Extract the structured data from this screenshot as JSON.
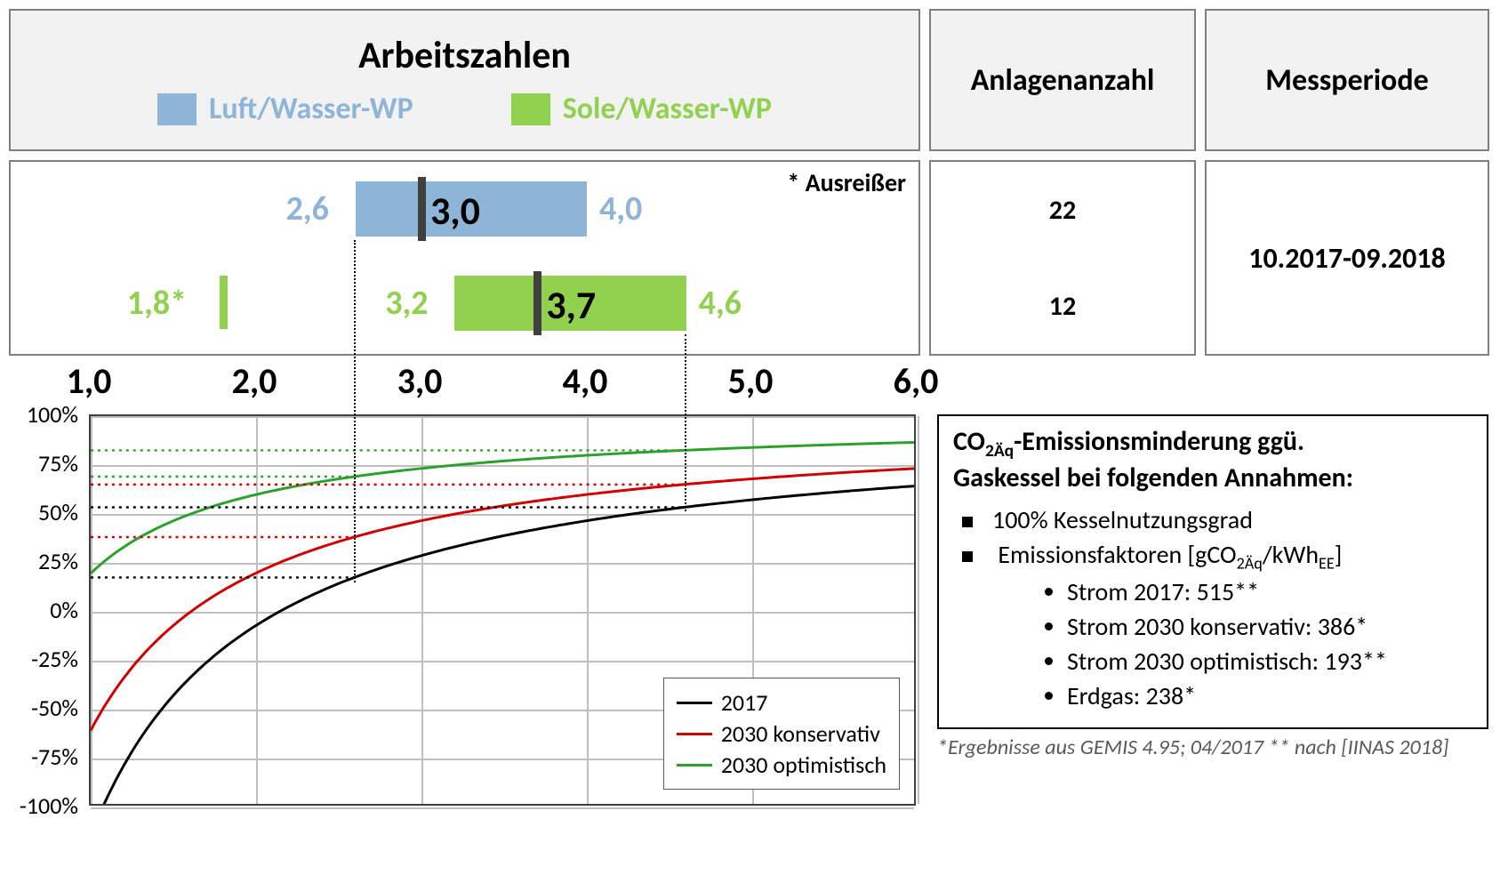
{
  "colors": {
    "luft": "#8eb4d8",
    "sole": "#92d050",
    "median": "#404040",
    "grid": "#bfbfbf",
    "line_2017": "#000000",
    "line_2030k": "#d00000",
    "line_2030o": "#2ca02c",
    "border": "#7f7f7f",
    "header_bg": "#f2f2f2"
  },
  "axis": {
    "min": 1.0,
    "max": 6.0,
    "ticks": [
      1.0,
      2.0,
      3.0,
      4.0,
      5.0,
      6.0
    ]
  },
  "header": {
    "arbeitszahlen": "Arbeitszahlen",
    "legend_luft": "Luft/Wasser-WP",
    "legend_sole": "Sole/Wasser-WP",
    "anlagen": "Anlagenanzahl",
    "messperiode": "Messperiode"
  },
  "ranges": {
    "outlier_note": "* Ausreißer",
    "luft": {
      "min": 2.6,
      "median": 3.0,
      "max": 4.0,
      "min_lbl": "2,6",
      "median_lbl": "3,0",
      "max_lbl": "4,0"
    },
    "sole": {
      "outlier": 1.8,
      "outlier_lbl": "1,8*",
      "min": 3.2,
      "median": 3.7,
      "max": 4.6,
      "min_lbl": "3,2",
      "median_lbl": "3,7",
      "max_lbl": "4,6"
    },
    "count_luft": "22",
    "count_sole": "12",
    "period": "10.2017-09.2018"
  },
  "linechart": {
    "ylim": [
      -100,
      100
    ],
    "ytick_step": 25,
    "yticks": [
      100,
      75,
      50,
      25,
      0,
      -25,
      -50,
      -75,
      -100
    ],
    "y_suffix": "%",
    "legend": {
      "s2017": "2017",
      "s2030k": "2030 konservativ",
      "s2030o": "2030 optimistisch"
    },
    "erdgas": 238,
    "series": {
      "s2017": {
        "ef": 515,
        "color": "#000000"
      },
      "s2030k": {
        "ef": 386,
        "color": "#d00000"
      },
      "s2030o": {
        "ef": 193,
        "color": "#2ca02c"
      }
    },
    "ref_lines": {
      "luft_low": 2.6,
      "sole_high": 4.6
    }
  },
  "info": {
    "title_l1": "CO",
    "title_sub": "2Äq",
    "title_l1b": "-Emissionsminderung ggü.",
    "title_l2": "Gaskessel bei folgenden Annahmen:",
    "bullet1": "100% Kesselnutzungsgrad",
    "bullet2_pre": "Emissionsfaktoren [",
    "bullet2_unit_g": "gCO",
    "bullet2_unit_sub1": "2Äq",
    "bullet2_unit_slash": "/kWh",
    "bullet2_unit_sub2": "EE",
    "bullet2_post": "]",
    "ef1": "Strom 2017: 515**",
    "ef2": "Strom 2030 konservativ: 386*",
    "ef3": "Strom 2030 optimistisch: 193**",
    "ef4": "Erdgas: 238*"
  },
  "footnote": "*Ergebnisse aus GEMIS 4.95; 04/2017   ** nach [IINAS 2018]"
}
